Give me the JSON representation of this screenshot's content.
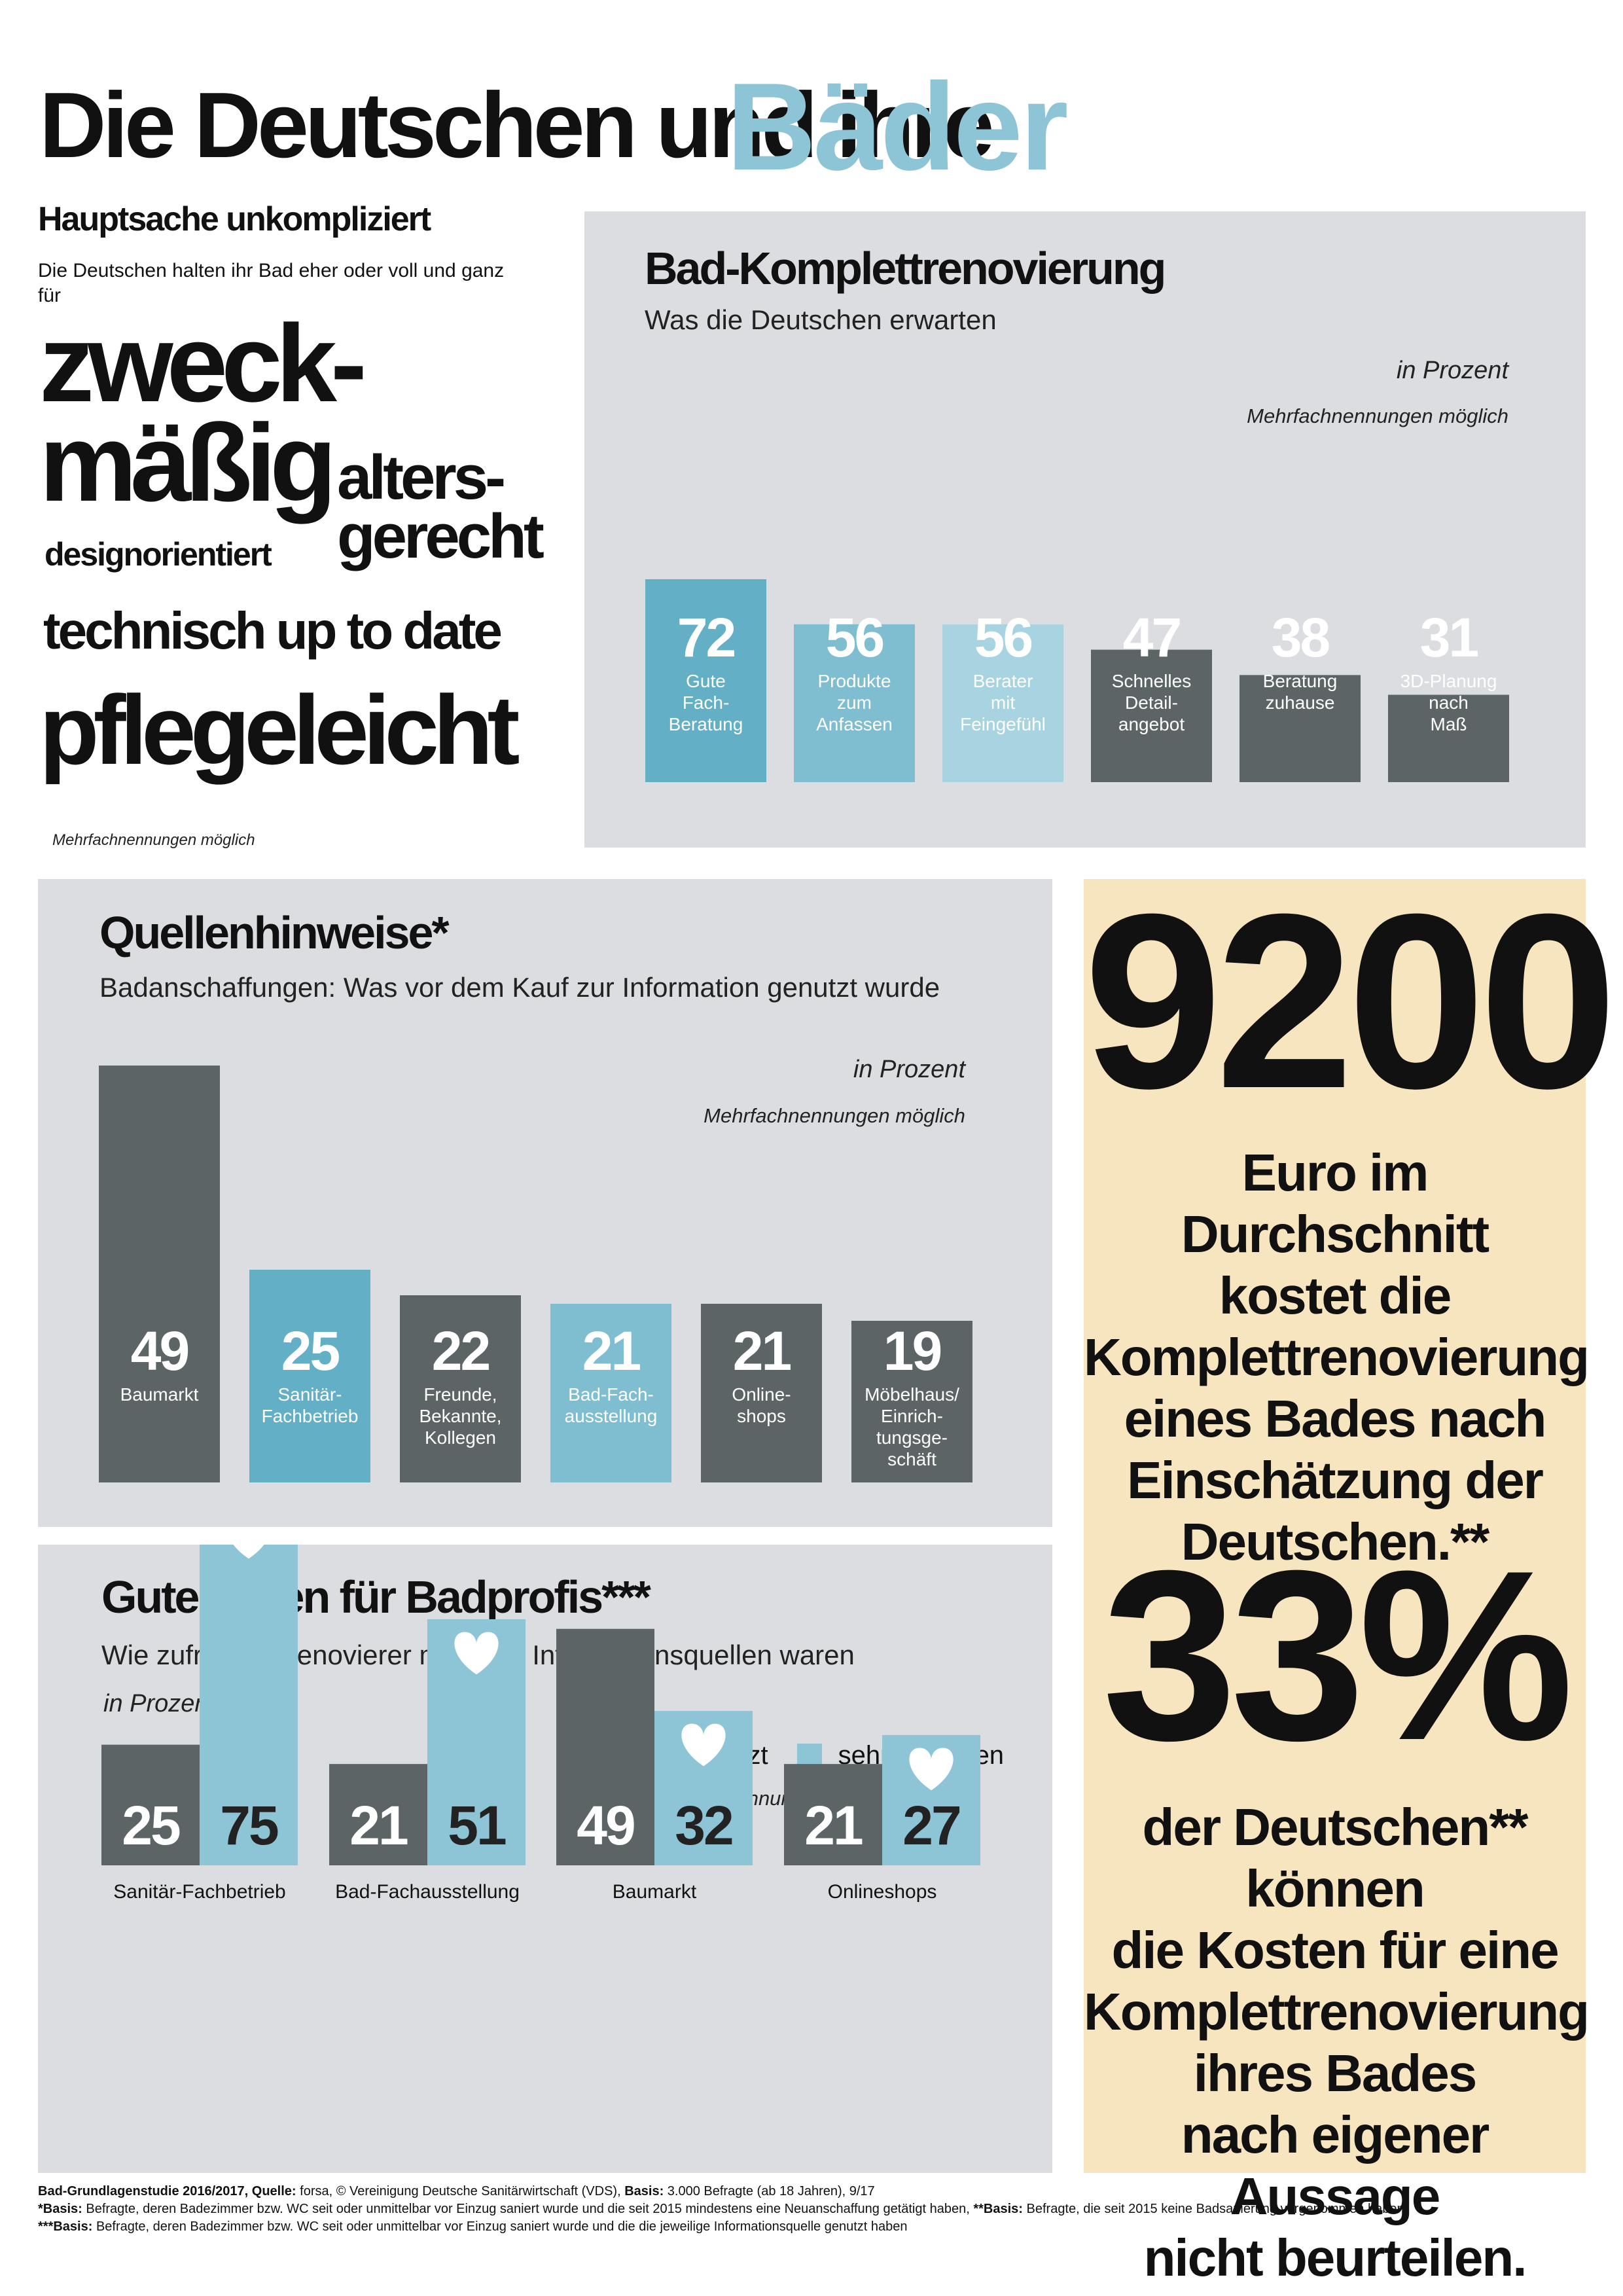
{
  "title": {
    "plain": "Die Deutschen und ihre",
    "accent": "Bäder"
  },
  "left": {
    "heading": "Hauptsache unkompliziert",
    "intro": "Die Deutschen halten ihr Bad eher oder voll und ganz für",
    "words": {
      "w1": "zweck-",
      "w2": "mäßig",
      "w3": "alters-",
      "w4": "gerecht",
      "w5": "designorientiert",
      "w6": "technisch up to date",
      "w7": "pflegeleicht"
    },
    "note": "Mehrfachnennungen möglich"
  },
  "panel1": {
    "title": "Bad-Komplettrenovierung",
    "subtitle": "Was die Deutschen erwarten",
    "unit": "in Prozent",
    "note": "Mehrfachnennungen möglich"
  },
  "panel2": {
    "title": "Quellenhinweise*",
    "subtitle": "Badanschaffungen: Was vor dem Kauf zur Information genutzt wurde",
    "unit": "in Prozent",
    "note": "Mehrfachnennungen möglich"
  },
  "panel3": {
    "title": "Gute Noten für Badprofis***",
    "subtitle": "Wie zufrieden Renovierer mit ihren Informationsquellen waren",
    "unit": "in Prozent",
    "note": "Mehrfachnennungen möglich",
    "legend": {
      "used": "genutzt",
      "satisfied": "sehr zufrieden"
    }
  },
  "stats": {
    "big1": "9200",
    "text1": [
      "Euro im Durchschnitt",
      "kostet die",
      "Komplettrenovierung",
      "eines Bades nach",
      "Einschätzung der",
      "Deutschen.**"
    ],
    "big2": "33%",
    "text2": [
      "der Deutschen** können",
      "die Kosten für eine",
      "Komplettrenovierung",
      "ihres Bades",
      "nach eigener Aussage",
      "nicht beurteilen."
    ]
  },
  "footer": {
    "line1_bold1": "Bad-Grundlagenstudie 2016/2017, Quelle:",
    "line1_text1": " forsa, © Vereinigung Deutsche Sanitärwirtschaft (VDS), ",
    "line1_bold2": "Basis:",
    "line1_text2": " 3.000 Befragte (ab 18 Jahren), 9/17",
    "line2_bold1": "*Basis:",
    "line2_text1": " Befragte, deren Badezimmer bzw. WC seit oder unmittelbar vor Einzug saniert wurde und die seit 2015 mindestens eine Neuanschaffung getätigt haben, ",
    "line2_bold2": "**Basis:",
    "line2_text2": " Befragte, die seit 2015 keine Badsanierung vorgenommen haben,",
    "line3_bold1": "***Basis:",
    "line3_text1": " Befragte, deren Badezimmer bzw. WC seit oder unmittelbar vor Einzug saniert wurde und die die jeweilige Informationsquelle genutzt haben"
  },
  "colors": {
    "blue_dark": "#62afc6",
    "blue_mid": "#7fbdd0",
    "blue_light": "#a8d3e1",
    "gray_bar": "#5d6466",
    "panel": "#dcdde0",
    "cream": "#f6e5bf",
    "accent": "#8ec5d6"
  },
  "chart_data": [
    {
      "type": "bar",
      "categories": [
        "Gute Fach-Beratung",
        "Produkte zum Anfassen",
        "Berater mit Feingefühl",
        "Schnelles Detail-angebot",
        "Beratung zuhause",
        "3D-Planung nach Maß"
      ],
      "label_lines": [
        [
          "Gute",
          "Fach-",
          "Beratung"
        ],
        [
          "Produkte",
          "zum",
          "Anfassen"
        ],
        [
          "Berater",
          "mit",
          "Feingefühl"
        ],
        [
          "Schnelles",
          "Detail-",
          "angebot"
        ],
        [
          "Beratung",
          "zuhause"
        ],
        [
          "3D-Planung",
          "nach",
          "Maß"
        ]
      ],
      "values": [
        72,
        56,
        56,
        47,
        38,
        31
      ],
      "colors": [
        "#62afc6",
        "#7fbdd0",
        "#a8d3e1",
        "#5d6466",
        "#5d6466",
        "#5d6466"
      ],
      "title": "Bad-Komplettrenovierung",
      "ylim": [
        0,
        72
      ]
    },
    {
      "type": "bar",
      "categories": [
        "Baumarkt",
        "Sanitär-Fachbetrieb",
        "Freunde, Bekannte, Kollegen",
        "Bad-Fach-ausstellung",
        "Online-shops",
        "Möbelhaus/Einrich-tungsge-schäft"
      ],
      "label_lines": [
        [
          "Baumarkt"
        ],
        [
          "Sanitär-",
          "Fachbetrieb"
        ],
        [
          "Freunde,",
          "Bekannte,",
          "Kollegen"
        ],
        [
          "Bad-Fach-",
          "ausstellung"
        ],
        [
          "Online-",
          "shops"
        ],
        [
          "Möbelhaus/",
          "Einrich-",
          "tungsge-",
          "schäft"
        ]
      ],
      "values": [
        49,
        25,
        22,
        21,
        21,
        19
      ],
      "colors": [
        "#5d6466",
        "#62afc6",
        "#5d6466",
        "#7fbdd0",
        "#5d6466",
        "#5d6466"
      ],
      "title": "Quellenhinweise*",
      "ylim": [
        0,
        49
      ]
    },
    {
      "type": "bar",
      "categories": [
        "Sanitär-Fachbetrieb",
        "Bad-Fachausstellung",
        "Baumarkt",
        "Onlineshops"
      ],
      "series": [
        {
          "name": "genutzt",
          "values": [
            25,
            21,
            49,
            21
          ]
        },
        {
          "name": "sehr zufrieden",
          "values": [
            75,
            51,
            32,
            27
          ]
        }
      ],
      "title": "Gute Noten für Badprofis***",
      "legend": "top-right",
      "ylim": [
        0,
        75
      ]
    }
  ]
}
